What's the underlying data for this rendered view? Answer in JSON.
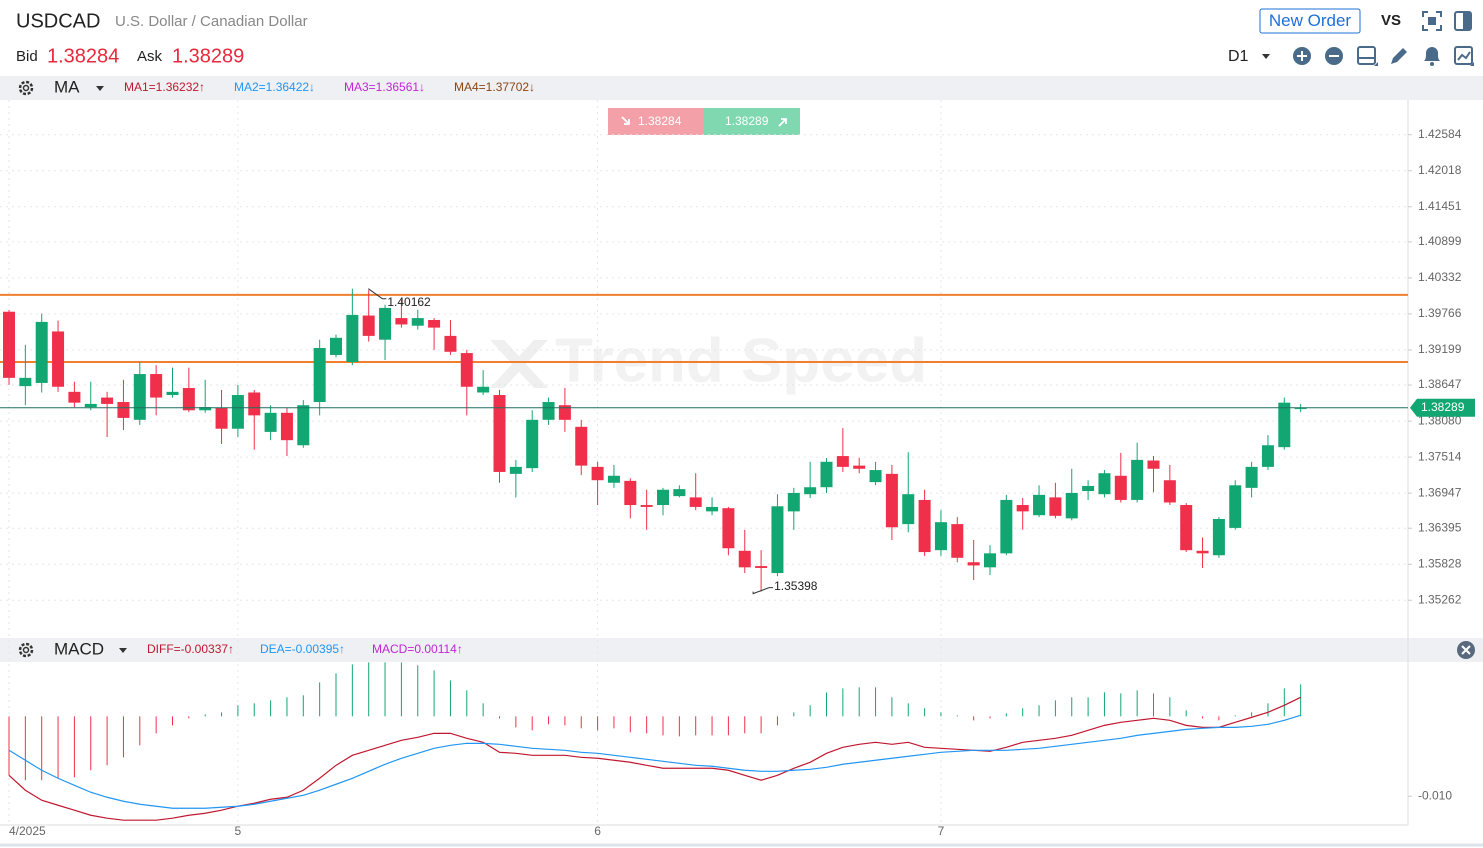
{
  "header": {
    "symbol": "USDCAD",
    "description": "U.S. Dollar / Canadian Dollar",
    "bid_label": "Bid",
    "bid": "1.38284",
    "ask_label": "Ask",
    "ask": "1.38289",
    "new_order": "New Order",
    "vs": "VS",
    "period": "D1",
    "sell": "1.38284",
    "buy": "1.38289",
    "watermark": "Trend Speed"
  },
  "chart_data": [
    {
      "type": "candlestick",
      "indicator": "MA",
      "indicator_legend": [
        {
          "text": "MA1=1.36232↑",
          "color": "#c0172f"
        },
        {
          "text": "MA2=1.36422↓",
          "color": "#2196f3"
        },
        {
          "text": "MA3=1.36561↓",
          "color": "#c026d3"
        },
        {
          "text": "MA4=1.37702↓",
          "color": "#8b4513"
        }
      ],
      "categories": [
        "4/2025",
        null,
        null,
        null,
        null,
        null,
        null,
        null,
        null,
        null,
        null,
        null,
        null,
        null,
        "5",
        null,
        null,
        null,
        null,
        null,
        null,
        null,
        null,
        null,
        null,
        null,
        null,
        null,
        null,
        null,
        null,
        null,
        null,
        null,
        null,
        null,
        "6",
        null,
        null,
        null,
        null,
        null,
        null,
        null,
        null,
        null,
        null,
        null,
        null,
        null,
        null,
        null,
        null,
        null,
        null,
        null,
        null,
        "7",
        null,
        null,
        null,
        null,
        null,
        null,
        null,
        null,
        null,
        null,
        null,
        null,
        null,
        null,
        null,
        null,
        null,
        null,
        null,
        null,
        null,
        null
      ],
      "open": [
        1.398,
        1.3863,
        1.3868,
        1.3949,
        1.3854,
        1.383,
        1.3845,
        1.3838,
        1.381,
        1.3882,
        1.3849,
        1.386,
        1.3825,
        1.3829,
        1.3796,
        1.3853,
        1.3791,
        1.3821,
        1.377,
        1.3838,
        1.3912,
        1.3901,
        1.3974,
        1.3936,
        1.397,
        1.3958,
        1.3967,
        1.3942,
        1.3915,
        1.3853,
        1.3849,
        1.3725,
        1.3734,
        1.381,
        1.3833,
        1.3799,
        1.3736,
        1.3711,
        1.3714,
        1.3676,
        1.3676,
        1.369,
        1.3688,
        1.3666,
        1.3671,
        1.3604,
        1.358,
        1.3569,
        1.3666,
        1.3693,
        1.3704,
        1.3753,
        1.3738,
        1.3712,
        1.3725,
        1.3646,
        1.3684,
        1.3605,
        1.3646,
        1.3586,
        1.3578,
        1.36,
        1.3676,
        1.366,
        1.3688,
        1.3655,
        1.3698,
        1.3693,
        1.3722,
        1.3684,
        1.3746,
        1.3715,
        1.3676,
        1.3604,
        1.3597,
        1.364,
        1.3703,
        1.3736,
        1.3767,
        1.3827
      ],
      "high": [
        1.3983,
        1.3928,
        1.3977,
        1.3966,
        1.387,
        1.387,
        1.3854,
        1.3873,
        1.3901,
        1.3896,
        1.3892,
        1.3892,
        1.3873,
        1.3857,
        1.3865,
        1.3857,
        1.3833,
        1.3829,
        1.3841,
        1.3936,
        1.3944,
        1.40162,
        1.4014,
        1.3991,
        1.3999,
        1.3983,
        1.397,
        1.3967,
        1.392,
        1.3888,
        1.3857,
        1.3747,
        1.3825,
        1.3845,
        1.386,
        1.381,
        1.3744,
        1.3739,
        1.3718,
        1.37,
        1.3703,
        1.3707,
        1.3726,
        1.3688,
        1.3673,
        1.3637,
        1.3605,
        1.3693,
        1.3703,
        1.3744,
        1.375,
        1.3797,
        1.375,
        1.3744,
        1.3739,
        1.3759,
        1.37,
        1.3668,
        1.3657,
        1.3621,
        1.3613,
        1.3692,
        1.3687,
        1.3707,
        1.3711,
        1.3733,
        1.3715,
        1.3731,
        1.3758,
        1.3774,
        1.3753,
        1.3739,
        1.3679,
        1.3625,
        1.3657,
        1.3715,
        1.3744,
        1.3786,
        1.3845,
        1.3835
      ],
      "low": [
        1.3865,
        1.3833,
        1.3853,
        1.3854,
        1.383,
        1.3825,
        1.3783,
        1.3794,
        1.3802,
        1.3817,
        1.3845,
        1.3822,
        1.3821,
        1.3772,
        1.3783,
        1.3763,
        1.3778,
        1.3753,
        1.3766,
        1.3817,
        1.3908,
        1.3896,
        1.3933,
        1.3904,
        1.3955,
        1.3952,
        1.392,
        1.3912,
        1.3817,
        1.3849,
        1.3711,
        1.3688,
        1.3728,
        1.3802,
        1.3791,
        1.3723,
        1.3676,
        1.3703,
        1.3655,
        1.3637,
        1.366,
        1.3688,
        1.3668,
        1.366,
        1.3597,
        1.3569,
        1.35398,
        1.3564,
        1.3637,
        1.3687,
        1.3695,
        1.3728,
        1.3726,
        1.3707,
        1.3621,
        1.3633,
        1.3596,
        1.3596,
        1.3586,
        1.3558,
        1.3566,
        1.3597,
        1.3637,
        1.3657,
        1.3655,
        1.3652,
        1.3684,
        1.3688,
        1.368,
        1.368,
        1.3696,
        1.3676,
        1.3602,
        1.3577,
        1.3593,
        1.3637,
        1.3688,
        1.3731,
        1.3763,
        1.3822
      ],
      "close": [
        1.3876,
        1.3876,
        1.3964,
        1.3862,
        1.3837,
        1.3835,
        1.3835,
        1.3813,
        1.3882,
        1.3845,
        1.3854,
        1.3825,
        1.383,
        1.3796,
        1.3849,
        1.3817,
        1.3821,
        1.3778,
        1.3833,
        1.3923,
        1.3939,
        1.3975,
        1.3942,
        1.3986,
        1.396,
        1.397,
        1.3955,
        1.3917,
        1.3862,
        1.3862,
        1.3728,
        1.3736,
        1.381,
        1.3838,
        1.381,
        1.3738,
        1.3715,
        1.3722,
        1.3676,
        1.3673,
        1.37,
        1.3701,
        1.3673,
        1.3673,
        1.3608,
        1.3578,
        1.3577,
        1.3674,
        1.3695,
        1.3704,
        1.3744,
        1.3736,
        1.3733,
        1.3731,
        1.3641,
        1.3693,
        1.3602,
        1.3649,
        1.3593,
        1.3581,
        1.36,
        1.3684,
        1.3666,
        1.3692,
        1.3659,
        1.3695,
        1.3706,
        1.3726,
        1.3684,
        1.3747,
        1.3733,
        1.368,
        1.3605,
        1.36,
        1.3654,
        1.3707,
        1.3736,
        1.377,
        1.3837,
        1.38284
      ],
      "up_color": "#12a672",
      "down_color": "#f0304a",
      "ylim": [
        1.347,
        1.4313
      ],
      "yticks": [
        1.42584,
        1.42018,
        1.41451,
        1.40899,
        1.40332,
        1.39766,
        1.39199,
        1.38647,
        {
          "value": 1.3808,
          "label": "1.38080"
        },
        1.37514,
        1.36947,
        1.36395,
        1.35828,
        1.35262
      ],
      "grid": true,
      "hlines": [
        {
          "value": 1.40065,
          "color": "#f08030"
        },
        {
          "value": 1.3901,
          "color": "#f08030"
        }
      ],
      "current_price": 1.38289,
      "current_color": "#12a672",
      "annotations": [
        {
          "text": "1.40162"
        },
        {
          "text": "1.35398"
        }
      ]
    },
    {
      "type": "macd",
      "indicator": "MACD",
      "ylim": [
        -0.0136,
        0.0068
      ],
      "yticks": [
        {
          "value": -0.01,
          "label": "-0.010"
        }
      ],
      "series": [
        {
          "name": "MACD=0.00114↑",
          "legend_color": "#c026d3",
          "type": "bar",
          "up_color": "#12a672",
          "down_color": "#f0304a",
          "values": [
            -0.00738,
            -0.008,
            -0.008,
            -0.00775,
            -0.00763,
            -0.00675,
            -0.00613,
            -0.00513,
            -0.00363,
            -0.00213,
            -0.00113,
            -0.00025,
            0.00025,
            0.0005,
            0.00138,
            0.00163,
            0.002,
            0.00238,
            0.00263,
            0.00425,
            0.00538,
            0.0065,
            0.00675,
            0.00675,
            0.00675,
            0.00638,
            0.00575,
            0.0045,
            0.00325,
            0.00163,
            -0.00025,
            -0.00138,
            -0.00175,
            -0.001,
            -0.00113,
            -0.0015,
            -0.00175,
            -0.0015,
            -0.002,
            -0.00213,
            -0.00238,
            -0.0025,
            -0.00238,
            -0.00238,
            -0.00238,
            -0.00213,
            -0.00213,
            -0.00113,
            0.0005,
            0.00138,
            0.003,
            0.0035,
            0.00363,
            0.00363,
            0.00238,
            0.00163,
            0.001,
            0.0005,
            0.00013,
            -0.0005,
            -0.00025,
            0.00038,
            0.001,
            0.00138,
            0.002,
            0.00238,
            0.00238,
            0.003,
            0.00288,
            0.00325,
            0.00288,
            0.00238,
            0.00075,
            -0.00025,
            -0.0005,
            0.00013,
            0.0005,
            0.00163,
            0.0035,
            0.004
          ]
        },
        {
          "name": "DIFF=-0.00337↑",
          "legend_color": "#c0172f",
          "type": "line",
          "color": "#c0172f",
          "values": [
            -0.00738,
            -0.00925,
            -0.0105,
            -0.01113,
            -0.01175,
            -0.01238,
            -0.01275,
            -0.013,
            -0.013,
            -0.013,
            -0.01275,
            -0.01238,
            -0.01213,
            -0.01175,
            -0.01125,
            -0.01088,
            -0.01038,
            -0.01013,
            -0.00925,
            -0.00775,
            -0.00613,
            -0.00488,
            -0.00425,
            -0.00363,
            -0.003,
            -0.00263,
            -0.00213,
            -0.00213,
            -0.00275,
            -0.00325,
            -0.0045,
            -0.00463,
            -0.00488,
            -0.00488,
            -0.00488,
            -0.00513,
            -0.00525,
            -0.0055,
            -0.00575,
            -0.00613,
            -0.0065,
            -0.0065,
            -0.0065,
            -0.0065,
            -0.00675,
            -0.00738,
            -0.008,
            -0.00738,
            -0.0065,
            -0.00575,
            -0.00463,
            -0.00388,
            -0.0035,
            -0.00325,
            -0.0035,
            -0.00325,
            -0.00388,
            -0.004,
            -0.00413,
            -0.00425,
            -0.00438,
            -0.00388,
            -0.00325,
            -0.003,
            -0.00275,
            -0.00238,
            -0.00175,
            -0.00113,
            -0.00075,
            -0.0005,
            -0.00025,
            -0.0005,
            -0.00113,
            -0.00138,
            -0.00138,
            -0.00075,
            -0.00013,
            0.0005,
            0.00138,
            0.00238
          ]
        },
        {
          "name": "DEA=-0.00395↑",
          "legend_color": "#2196f3",
          "type": "line",
          "color": "#2196f3",
          "values": [
            -0.00425,
            -0.0055,
            -0.00675,
            -0.00775,
            -0.00863,
            -0.0095,
            -0.01013,
            -0.01063,
            -0.011,
            -0.01125,
            -0.0115,
            -0.0115,
            -0.0115,
            -0.01138,
            -0.01125,
            -0.011,
            -0.01063,
            -0.01025,
            -0.00988,
            -0.00925,
            -0.0085,
            -0.00775,
            -0.00688,
            -0.006,
            -0.00525,
            -0.00463,
            -0.004,
            -0.00363,
            -0.00338,
            -0.00338,
            -0.0035,
            -0.00375,
            -0.004,
            -0.00413,
            -0.00425,
            -0.0045,
            -0.00463,
            -0.00488,
            -0.00513,
            -0.00538,
            -0.00563,
            -0.00588,
            -0.00613,
            -0.00625,
            -0.0065,
            -0.00675,
            -0.00688,
            -0.00688,
            -0.00675,
            -0.00663,
            -0.00638,
            -0.006,
            -0.00575,
            -0.0055,
            -0.00525,
            -0.005,
            -0.00475,
            -0.0045,
            -0.00438,
            -0.00425,
            -0.00425,
            -0.00425,
            -0.00413,
            -0.004,
            -0.00375,
            -0.0035,
            -0.00325,
            -0.003,
            -0.00275,
            -0.00238,
            -0.00213,
            -0.00188,
            -0.00163,
            -0.0015,
            -0.00138,
            -0.00138,
            -0.00125,
            -0.001,
            -0.0005,
            0.00013
          ]
        }
      ]
    }
  ]
}
